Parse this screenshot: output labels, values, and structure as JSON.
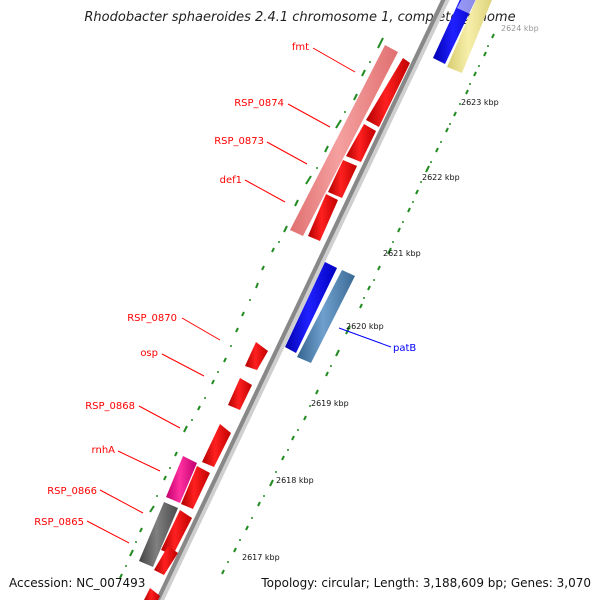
{
  "title": "Rhodobacter sphaeroides 2.4.1 chromosome 1, complete genome",
  "accession": "Accession: NC_007493",
  "summary": "Topology: circular; Length: 3,188,609 bp; Genes: 3,070",
  "ticks": [
    "2617 kbp",
    "2618 kbp",
    "2619 kbp",
    "2620 kbp",
    "2621 kbp",
    "2622 kbp",
    "2623 kbp",
    "2624 kbp"
  ],
  "genes": [
    {
      "name": "fmt",
      "color": "#ff0000"
    },
    {
      "name": "RSP_0874",
      "color": "#ff0000"
    },
    {
      "name": "RSP_0873",
      "color": "#ff0000"
    },
    {
      "name": "def1",
      "color": "#ff0000"
    },
    {
      "name": "RSP_0870",
      "color": "#ff0000"
    },
    {
      "name": "osp",
      "color": "#ff0000"
    },
    {
      "name": "RSP_0868",
      "color": "#ff0000"
    },
    {
      "name": "rnhA",
      "color": "#ff0000"
    },
    {
      "name": "RSP_0866",
      "color": "#ff0000"
    },
    {
      "name": "RSP_0865",
      "color": "#ff0000"
    },
    {
      "name": "patB",
      "color": "#0000ff"
    }
  ],
  "colors": {
    "cds_forward": "#ff0000",
    "gene_forward": "#f08080",
    "cds_reverse": "#0000ff",
    "gene_reverse": "#4682b4",
    "trna": "#ff1493",
    "gene_other": "#666666",
    "partial": "#f0e68c",
    "backbone": "#888888",
    "gc": "#228b22"
  }
}
